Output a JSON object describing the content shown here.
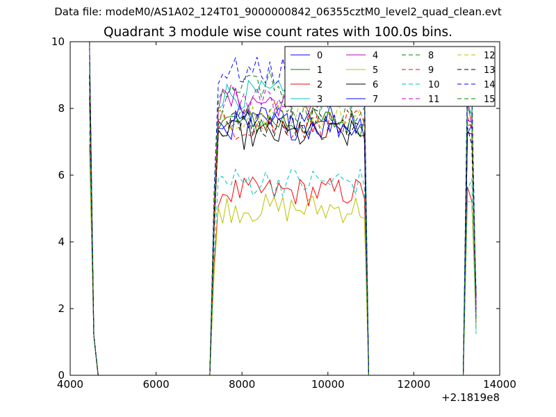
{
  "figure": {
    "suptitle": "Data file: modeM0/AS1A02_124T01_9000000842_06355cztM0_level2_quad_clean.evt",
    "title": "Quadrant 3 module wise count rates with 100.0s bins."
  },
  "chart_data": {
    "type": "line",
    "title": "Quadrant 3 module wise count rates with 100.0s bins.",
    "xlabel": "",
    "ylabel": "",
    "xlim": [
      4000,
      14000
    ],
    "ylim": [
      0,
      10
    ],
    "x_offset_label": "+2.1819e8",
    "xticks": [
      4000,
      6000,
      8000,
      10000,
      12000,
      14000
    ],
    "yticks": [
      0,
      2,
      4,
      6,
      8,
      10
    ],
    "grid": false,
    "legend": {
      "position": "top-right",
      "columns": 4
    },
    "series": [
      {
        "name": "0",
        "color": "#0000ff",
        "dash": "solid",
        "level": 7.7
      },
      {
        "name": "1",
        "color": "#008000",
        "dash": "solid",
        "level": 7.6
      },
      {
        "name": "2",
        "color": "#ff0000",
        "dash": "solid",
        "level": 5.5
      },
      {
        "name": "3",
        "color": "#00bfbf",
        "dash": "solid",
        "level": 8.4
      },
      {
        "name": "4",
        "color": "#bf00bf",
        "dash": "solid",
        "level": 8.2
      },
      {
        "name": "5",
        "color": "#bfbf00",
        "dash": "solid",
        "level": 5.0
      },
      {
        "name": "6",
        "color": "#000000",
        "dash": "solid",
        "level": 7.2
      },
      {
        "name": "7",
        "color": "#0000ff",
        "dash": "solid",
        "level": 7.5
      },
      {
        "name": "8",
        "color": "#008000",
        "dash": "dashed",
        "level": 7.9
      },
      {
        "name": "9",
        "color": "#ff0000",
        "dash": "dashed",
        "level": 7.5
      },
      {
        "name": "10",
        "color": "#00bfbf",
        "dash": "dashed",
        "level": 5.8
      },
      {
        "name": "11",
        "color": "#bf00bf",
        "dash": "dashed",
        "level": 8.3
      },
      {
        "name": "12",
        "color": "#bfbf00",
        "dash": "dashed",
        "level": 7.8
      },
      {
        "name": "13",
        "color": "#000000",
        "dash": "dashed",
        "level": 7.6
      },
      {
        "name": "14",
        "color": "#0000ff",
        "dash": "dashed",
        "level": 9.1
      },
      {
        "name": "15",
        "color": "#008000",
        "dash": "dashed",
        "level": 8.7
      }
    ]
  }
}
